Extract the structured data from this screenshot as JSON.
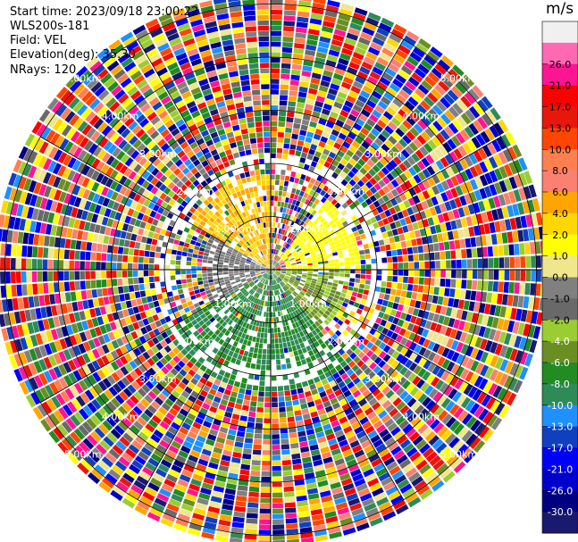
{
  "header": {
    "start_time": "Start time: 2023/09/18 23:00:22",
    "station": "WLS200s-181",
    "field": "Field: VEL",
    "elevation": "Elevation(deg): 35.30",
    "nrays": "NRays: 120"
  },
  "colorbar": {
    "unit": "m/s",
    "ticks": [
      "26.0",
      "21.0",
      "17.0",
      "13.0",
      "10.0",
      "8.0",
      "6.0",
      "4.0",
      "2.0",
      "1.0",
      "0.0",
      "-1.0",
      "-2.0",
      "-4.0",
      "-6.0",
      "-8.0",
      "-10.0",
      "-13.0",
      "-17.0",
      "-21.0",
      "-26.0",
      "-30.0"
    ],
    "colors": [
      "#f0f0f0",
      "#ff69b4",
      "#ff1493",
      "#ff0000",
      "#e8170c",
      "#ff4500",
      "#ff7f50",
      "#fa8072",
      "#ffa500",
      "#ffd700",
      "#ffff00",
      "#f0e68c",
      "#808080",
      "#696969",
      "#9acd32",
      "#6b8e23",
      "#228b22",
      "#2e8b57",
      "#1e90ff",
      "#1040c0",
      "#0000ff",
      "#0000cd",
      "#000080",
      "#191970"
    ]
  },
  "chart_data": {
    "type": "heatmap",
    "projection": "polar PPI",
    "field": "VEL",
    "units": "m/s",
    "nrays": 120,
    "range_rings_km": [
      1.0,
      2.0,
      3.0,
      4.0,
      5.0
    ],
    "ring_labels": [
      "1.00km",
      "2.00km",
      "3.00km",
      "4.00km",
      "5.00km"
    ],
    "color_scale_boundaries": [
      -30,
      -26,
      -21,
      -17,
      -13,
      -10,
      -8,
      -6,
      -4,
      -2,
      -1,
      0,
      1,
      2,
      4,
      6,
      8,
      10,
      13,
      17,
      21,
      26
    ],
    "sectors": [
      {
        "azimuth_range_deg": [
          300,
          360
        ],
        "range_km": [
          0,
          1.8
        ],
        "velocity_m_s": [
          4,
          8
        ]
      },
      {
        "azimuth_range_deg": [
          40,
          90
        ],
        "range_km": [
          0.3,
          1.7
        ],
        "velocity_m_s": [
          2,
          4
        ]
      },
      {
        "azimuth_range_deg": [
          240,
          300
        ],
        "range_km": [
          0,
          1.3
        ],
        "velocity_m_s": [
          -1,
          1
        ]
      },
      {
        "azimuth_range_deg": [
          90,
          140
        ],
        "range_km": [
          0,
          1.5
        ],
        "velocity_m_s": [
          -4,
          -1
        ]
      },
      {
        "azimuth_range_deg": [
          140,
          240
        ],
        "range_km": [
          0,
          2.3
        ],
        "velocity_m_s": [
          -8,
          -4
        ]
      },
      {
        "azimuth_range_deg": [
          0,
          360
        ],
        "range_km": [
          2.0,
          5.3
        ],
        "velocity_m_s": "noise (all values)"
      }
    ]
  }
}
